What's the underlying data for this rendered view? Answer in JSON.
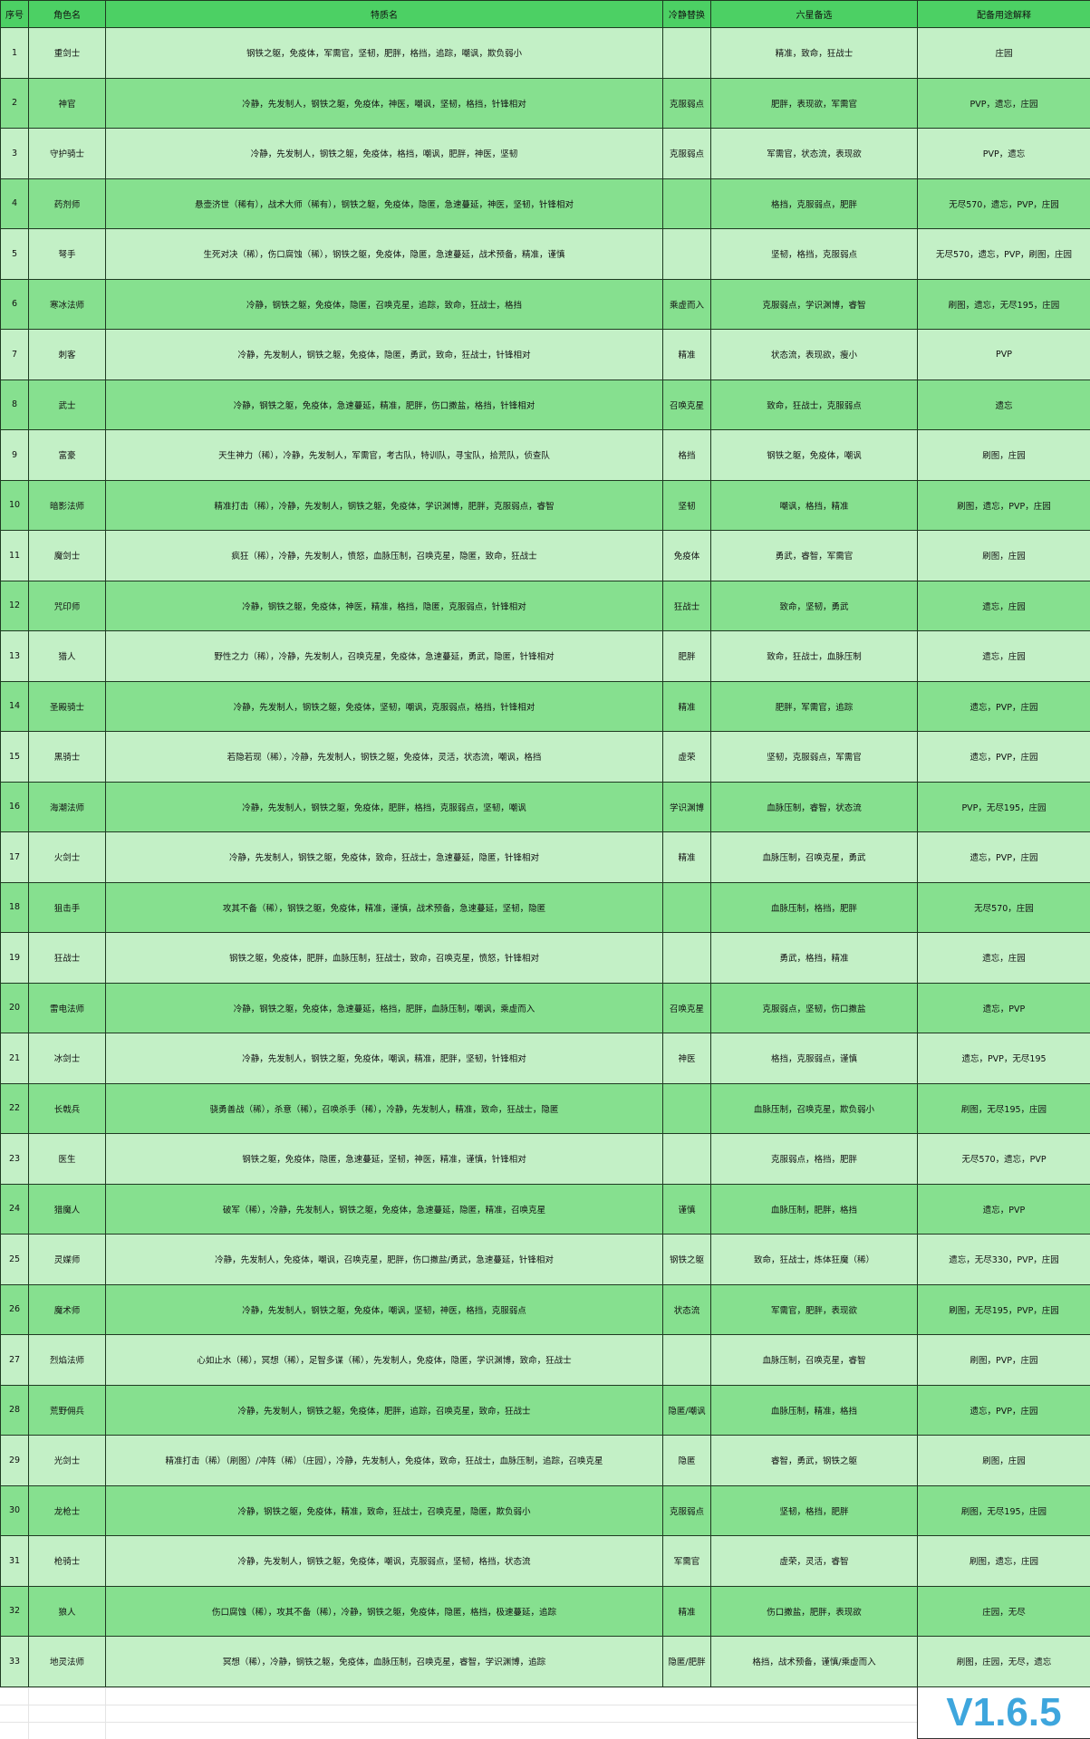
{
  "headers": [
    "序号",
    "角色名",
    "特质名",
    "冷静替换",
    "六星备选",
    "配备用途解释"
  ],
  "rows": [
    [
      "1",
      "重剑士",
      "钢铁之躯，免疫体，军需官，坚韧，肥胖，格挡，追踪，嘲讽，欺负弱小",
      "",
      "精准，致命，狂战士",
      "庄园"
    ],
    [
      "2",
      "神官",
      "冷静，先发制人，钢铁之躯，免疫体，神医，嘲讽，坚韧，格挡，针锋相对",
      "克服弱点",
      "肥胖，表现欲，军需官",
      "PVP，遗忘，庄园"
    ],
    [
      "3",
      "守护骑士",
      "冷静，先发制人，钢铁之躯，免疫体，格挡，嘲讽，肥胖，神医，坚韧",
      "克服弱点",
      "军需官，状态流，表现欲",
      "PVP，遗忘"
    ],
    [
      "4",
      "药剂师",
      "悬壶济世（稀有），战术大师（稀有），钢铁之躯，免疫体，隐匿，急速蔓延，神医，坚韧，针锋相对",
      "",
      "格挡，克服弱点，肥胖",
      "无尽570，遗忘，PVP，庄园"
    ],
    [
      "5",
      "弩手",
      "生死对决（稀），伤口腐蚀（稀），钢铁之躯，免疫体，隐匿，急速蔓延，战术预备，精准，谨慎",
      "",
      "坚韧，格挡，克服弱点",
      "无尽570，遗忘，PVP，刷图，庄园"
    ],
    [
      "6",
      "寒冰法师",
      "冷静，钢铁之躯，免疫体，隐匿，召唤克星，追踪，致命，狂战士，格挡",
      "乘虚而入",
      "克服弱点，学识渊博，睿智",
      "刷图，遗忘，无尽195，庄园"
    ],
    [
      "7",
      "刺客",
      "冷静，先发制人，钢铁之躯，免疫体，隐匿，勇武，致命，狂战士，针锋相对",
      "精准",
      "状态流，表现欲，瘦小",
      "PVP"
    ],
    [
      "8",
      "武士",
      "冷静，钢铁之躯，免疫体，急速蔓延，精准，肥胖，伤口撒盐，格挡，针锋相对",
      "召唤克星",
      "致命，狂战士，克服弱点",
      "遗忘"
    ],
    [
      "9",
      "富豪",
      "天生神力（稀），冷静，先发制人，军需官，考古队，特训队，寻宝队，拾荒队，侦查队",
      "格挡",
      "钢铁之躯，免疫体，嘲讽",
      "刷图，庄园"
    ],
    [
      "10",
      "暗影法师",
      "精准打击（稀），冷静，先发制人，钢铁之躯，免疫体，学识渊博，肥胖，克服弱点，睿智",
      "坚韧",
      "嘲讽，格挡，精准",
      "刷图，遗忘，PVP，庄园"
    ],
    [
      "11",
      "魔剑士",
      "疯狂（稀），冷静，先发制人，愤怒，血脉压制，召唤克星，隐匿，致命，狂战士",
      "免疫体",
      "勇武，睿智，军需官",
      "刷图，庄园"
    ],
    [
      "12",
      "咒印师",
      "冷静，钢铁之躯，免疫体，神医，精准，格挡，隐匿，克服弱点，针锋相对",
      "狂战士",
      "致命，坚韧，勇武",
      "遗忘，庄园"
    ],
    [
      "13",
      "猎人",
      "野性之力（稀），冷静，先发制人，召唤克星，免疫体，急速蔓延，勇武，隐匿，针锋相对",
      "肥胖",
      "致命，狂战士，血脉压制",
      "遗忘，庄园"
    ],
    [
      "14",
      "圣殿骑士",
      "冷静，先发制人，钢铁之躯，免疫体，坚韧，嘲讽，克服弱点，格挡，针锋相对",
      "精准",
      "肥胖，军需官，追踪",
      "遗忘，PVP，庄园"
    ],
    [
      "15",
      "黑骑士",
      "若隐若现（稀），冷静，先发制人，钢铁之躯，免疫体，灵活，状态流，嘲讽，格挡",
      "虚荣",
      "坚韧，克服弱点，军需官",
      "遗忘，PVP，庄园"
    ],
    [
      "16",
      "海潮法师",
      "冷静，先发制人，钢铁之躯，免疫体，肥胖，格挡，克服弱点，坚韧，嘲讽",
      "学识渊博",
      "血脉压制，睿智，状态流",
      "PVP，无尽195，庄园"
    ],
    [
      "17",
      "火剑士",
      "冷静，先发制人，钢铁之躯，免疫体，致命，狂战士，急速蔓延，隐匿，针锋相对",
      "精准",
      "血脉压制，召唤克星，勇武",
      "遗忘，PVP，庄园"
    ],
    [
      "18",
      "狙击手",
      "攻其不备（稀），钢铁之躯，免疫体，精准，谨慎，战术预备，急速蔓延，坚韧，隐匿",
      "",
      "血脉压制，格挡，肥胖",
      "无尽570，庄园"
    ],
    [
      "19",
      "狂战士",
      "钢铁之躯，免疫体，肥胖，血脉压制，狂战士，致命，召唤克星，愤怒，针锋相对",
      "",
      "勇武，格挡，精准",
      "遗忘，庄园"
    ],
    [
      "20",
      "雷电法师",
      "冷静，钢铁之躯，免疫体，急速蔓延，格挡，肥胖，血脉压制，嘲讽，乘虚而入",
      "召唤克星",
      "克服弱点，坚韧，伤口撒盐",
      "遗忘，PVP"
    ],
    [
      "21",
      "冰剑士",
      "冷静，先发制人，钢铁之躯，免疫体，嘲讽，精准，肥胖，坚韧，针锋相对",
      "神医",
      "格挡，克服弱点，谨慎",
      "遗忘，PVP，无尽195"
    ],
    [
      "22",
      "长戟兵",
      "骁勇善战（稀），杀意（稀），召唤杀手（稀），冷静，先发制人，精准，致命，狂战士，隐匿",
      "",
      "血脉压制，召唤克星，欺负弱小",
      "刷图，无尽195，庄园"
    ],
    [
      "23",
      "医生",
      "钢铁之躯，免疫体，隐匿，急速蔓延，坚韧，神医，精准，谨慎，针锋相对",
      "",
      "克服弱点，格挡，肥胖",
      "无尽570，遗忘，PVP"
    ],
    [
      "24",
      "猎魔人",
      "破军（稀），冷静，先发制人，钢铁之躯，免疫体，急速蔓延，隐匿，精准，召唤克星",
      "谨慎",
      "血脉压制，肥胖，格挡",
      "遗忘，PVP"
    ],
    [
      "25",
      "灵媒师",
      "冷静，先发制人，免疫体，嘲讽，召唤克星，肥胖，伤口撒盐/勇武，急速蔓延，针锋相对",
      "钢铁之躯",
      "致命，狂战士，炼体狂魔（稀）",
      "遗忘，无尽330，PVP，庄园"
    ],
    [
      "26",
      "魔术师",
      "冷静，先发制人，钢铁之躯，免疫体，嘲讽，坚韧，神医，格挡，克服弱点",
      "状态流",
      "军需官，肥胖，表现欲",
      "刷图，无尽195，PVP，庄园"
    ],
    [
      "27",
      "烈焰法师",
      "心如止水（稀），冥想（稀），足智多谋（稀），先发制人，免疫体，隐匿，学识渊博，致命，狂战士",
      "",
      "血脉压制，召唤克星，睿智",
      "刷图，PVP，庄园"
    ],
    [
      "28",
      "荒野佣兵",
      "冷静，先发制人，钢铁之躯，免疫体，肥胖，追踪，召唤克星，致命，狂战士",
      "隐匿/嘲讽",
      "血脉压制，精准，格挡",
      "遗忘，PVP，庄园"
    ],
    [
      "29",
      "光剑士",
      "精准打击（稀）（刷图）/冲阵（稀）（庄园），冷静，先发制人，免疫体，致命，狂战士，血脉压制，追踪，召唤克星",
      "隐匿",
      "睿智，勇武，钢铁之躯",
      "刷图，庄园"
    ],
    [
      "30",
      "龙枪士",
      "冷静，钢铁之躯，免疫体，精准，致命，狂战士，召唤克星，隐匿，欺负弱小",
      "克服弱点",
      "坚韧，格挡，肥胖",
      "刷图，无尽195，庄园"
    ],
    [
      "31",
      "枪骑士",
      "冷静，先发制人，钢铁之躯，免疫体，嘲讽，克服弱点，坚韧，格挡，状态流",
      "军需官",
      "虚荣，灵活，睿智",
      "刷图，遗忘，庄园"
    ],
    [
      "32",
      "狼人",
      "伤口腐蚀（稀），攻其不备（稀），冷静，钢铁之躯，免疫体，隐匿，格挡，极速蔓延，追踪",
      "精准",
      "伤口撒盐，肥胖，表现欲",
      "庄园，无尽"
    ],
    [
      "33",
      "地灵法师",
      "冥想（稀），冷静，钢铁之躯，免疫体，血脉压制，召唤克星，睿智，学识渊博，追踪",
      "隐匿/肥胖",
      "格挡，战术预备，谨慎/乘虚而入",
      "刷图，庄园，无尽，遗忘"
    ]
  ],
  "version": "V1.6.5",
  "colors": {
    "header": "#4cd064",
    "row_dark": "#86e08f",
    "row_light": "#c3f0c6",
    "version": "#3ea6dd"
  }
}
